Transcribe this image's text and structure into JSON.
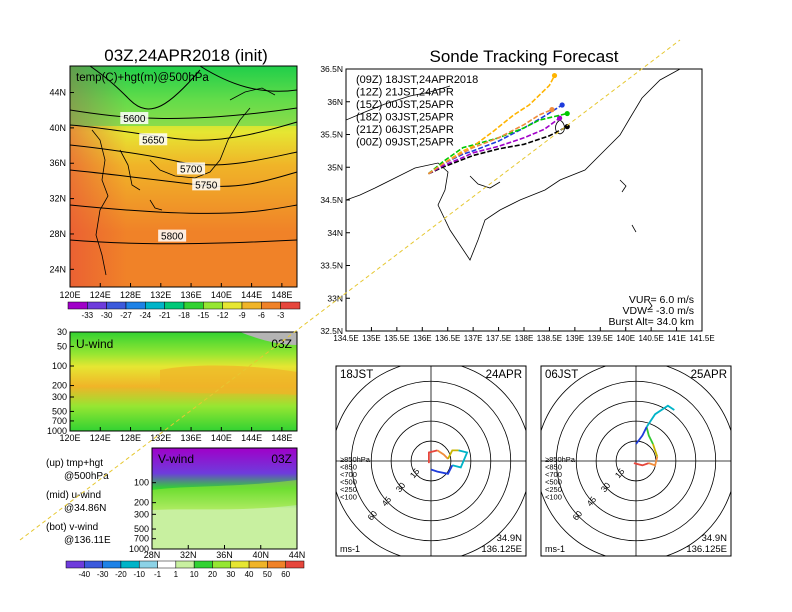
{
  "chart_data": [
    {
      "type": "heatmap",
      "panel": "upper-air-map",
      "title": "03Z,24APR2018 (init)",
      "subtitle": "temp(C)+hgt(m)@500hPa",
      "xticks": [
        "120E",
        "124E",
        "128E",
        "132E",
        "136E",
        "140E",
        "144E",
        "148E"
      ],
      "yticks": [
        "44N",
        "40N",
        "36N",
        "32N",
        "28N",
        "24N"
      ],
      "xlim": [
        120,
        150
      ],
      "ylim": [
        22,
        47
      ],
      "colorbar": {
        "ticks": [
          "-33",
          "-30",
          "-27",
          "-24",
          "-21",
          "-18",
          "-15",
          "-12",
          "-9",
          "-6",
          "-3"
        ],
        "colors": [
          "#a000c8",
          "#6e3cdc",
          "#3c5adc",
          "#1e82e6",
          "#00b4c8",
          "#00c878",
          "#32d232",
          "#96e632",
          "#e6e632",
          "#f0b428",
          "#f08228",
          "#e6463c"
        ]
      },
      "contour_labels": [
        {
          "text": "5600",
          "lon": 128.5,
          "lat": 41.0
        },
        {
          "text": "5650",
          "lon": 131.0,
          "lat": 38.6
        },
        {
          "text": "5700",
          "lon": 136.0,
          "lat": 35.3
        },
        {
          "text": "5750",
          "lon": 138.0,
          "lat": 33.5
        },
        {
          "text": "5800",
          "lon": 133.5,
          "lat": 27.7
        }
      ]
    },
    {
      "type": "heatmap",
      "panel": "u-wind",
      "title": "U-wind",
      "time": "03Z",
      "xticks": [
        "120E",
        "124E",
        "128E",
        "132E",
        "136E",
        "140E",
        "144E",
        "148E"
      ],
      "yticks": [
        "30",
        "50",
        "100",
        "200",
        "300",
        "500",
        "700",
        "1000"
      ],
      "xlim": [
        120,
        150
      ],
      "ylim": [
        1000,
        30
      ],
      "log_y": true
    },
    {
      "type": "heatmap",
      "panel": "v-wind",
      "title": "V-wind",
      "time": "03Z",
      "xticks": [
        "28N",
        "32N",
        "36N",
        "40N",
        "44N"
      ],
      "yticks": [
        "100",
        "200",
        "300",
        "500",
        "700",
        "1000"
      ],
      "xlim": [
        28,
        44
      ],
      "ylim": [
        1000,
        30
      ],
      "log_y": true,
      "colorbar": {
        "ticks": [
          "-40",
          "-30",
          "-20",
          "-10",
          "-1",
          "1",
          "10",
          "20",
          "30",
          "40",
          "50",
          "60"
        ],
        "colors": [
          "#6e3cdc",
          "#3c5adc",
          "#1e82e6",
          "#00b4c8",
          "#8cd2e6",
          "#ffffff",
          "#c8f0a0",
          "#32d232",
          "#96e632",
          "#e6e632",
          "#f0b428",
          "#f08228",
          "#e6463c"
        ]
      }
    },
    {
      "type": "line",
      "panel": "sonde-tracking",
      "title": "Sonde Tracking Forecast",
      "xticks": [
        "134.5E",
        "135E",
        "135.5E",
        "136E",
        "136.5E",
        "137E",
        "137.5E",
        "138E",
        "138.5E",
        "139E",
        "139.5E",
        "140E",
        "140.5E",
        "141E",
        "141.5E"
      ],
      "yticks": [
        "36.5N",
        "36N",
        "35.5N",
        "35N",
        "34.5N",
        "34N",
        "33.5N",
        "33N",
        "32.5N"
      ],
      "xlim": [
        134.5,
        141.5
      ],
      "ylim": [
        32.5,
        36.5
      ],
      "legend": "top-left",
      "series": [
        {
          "name": "(09Z) 18JST,24APR2018",
          "color": "#000000",
          "points": [
            [
              136.12,
              34.9
            ],
            [
              136.4,
              35.0
            ],
            [
              136.8,
              35.12
            ],
            [
              137.0,
              35.18
            ],
            [
              137.5,
              35.28
            ],
            [
              138.0,
              35.35
            ],
            [
              138.5,
              35.48
            ],
            [
              138.85,
              35.62
            ]
          ]
        },
        {
          "name": "(12Z) 21JST,24APR",
          "color": "#a000c8",
          "points": [
            [
              136.12,
              34.9
            ],
            [
              136.4,
              35.02
            ],
            [
              136.8,
              35.15
            ],
            [
              137.0,
              35.22
            ],
            [
              137.5,
              35.32
            ],
            [
              138.0,
              35.45
            ],
            [
              138.4,
              35.58
            ],
            [
              138.7,
              35.75
            ]
          ]
        },
        {
          "name": "(15Z) 00JST,25APR",
          "color": "#1e3cdc",
          "points": [
            [
              136.12,
              34.9
            ],
            [
              136.4,
              35.05
            ],
            [
              136.8,
              35.2
            ],
            [
              137.0,
              35.25
            ],
            [
              137.5,
              35.4
            ],
            [
              138.0,
              35.6
            ],
            [
              138.4,
              35.78
            ],
            [
              138.75,
              35.95
            ]
          ]
        },
        {
          "name": "(18Z) 03JST,25APR",
          "color": "#00c800",
          "points": [
            [
              136.12,
              34.9
            ],
            [
              136.4,
              35.08
            ],
            [
              136.8,
              35.3
            ],
            [
              137.0,
              35.34
            ],
            [
              137.5,
              35.45
            ],
            [
              138.0,
              35.6
            ],
            [
              138.3,
              35.72
            ],
            [
              138.85,
              35.82
            ]
          ]
        },
        {
          "name": "(21Z) 06JST,25APR",
          "color": "#ffb400",
          "points": [
            [
              136.12,
              34.9
            ],
            [
              136.4,
              35.05
            ],
            [
              136.8,
              35.25
            ],
            [
              137.0,
              35.32
            ],
            [
              137.4,
              35.55
            ],
            [
              137.8,
              35.8
            ],
            [
              138.1,
              35.95
            ],
            [
              138.3,
              36.1
            ],
            [
              138.5,
              36.25
            ],
            [
              138.6,
              36.4
            ]
          ]
        },
        {
          "name": "(00Z) 09JST,25APR",
          "color": "#f08c3c",
          "points": [
            [
              136.12,
              34.9
            ],
            [
              136.4,
              35.05
            ],
            [
              136.8,
              35.22
            ],
            [
              137.0,
              35.3
            ],
            [
              137.5,
              35.45
            ],
            [
              138.0,
              35.65
            ],
            [
              138.3,
              35.8
            ],
            [
              138.55,
              35.88
            ]
          ]
        }
      ],
      "annotations": [
        "VUP= 6.0 m/s",
        "VDW= -3.0 m/s",
        "Burst Alt= 34.0 km"
      ]
    },
    {
      "type": "line",
      "panel": "hodograph-18JST",
      "title_left": "18JST",
      "title_right": "24APR",
      "unit": "ms-1",
      "location": [
        "34.9N",
        "136.125E"
      ],
      "ring_labels": [
        "15",
        "30",
        "45",
        "60"
      ],
      "legend": [
        "≥850hPa",
        "<850",
        "<700",
        "<500",
        "<250",
        "<100"
      ],
      "legend_colors": [
        "#e6463c",
        "#f08c3c",
        "#c8b400",
        "#32c832",
        "#00b4c8",
        "#1e3cdc"
      ],
      "segments": [
        {
          "color": "#e6463c",
          "uv": [
            [
              -1,
              -1
            ],
            [
              -1,
              4
            ],
            [
              3,
              5
            ]
          ]
        },
        {
          "color": "#f08c3c",
          "uv": [
            [
              3,
              5
            ],
            [
              6,
              3
            ],
            [
              8,
              1
            ]
          ]
        },
        {
          "color": "#c8b400",
          "uv": [
            [
              8,
              1
            ],
            [
              10,
              5
            ],
            [
              13,
              5
            ]
          ]
        },
        {
          "color": "#00b4c8",
          "uv": [
            [
              13,
              5
            ],
            [
              17,
              4
            ],
            [
              14,
              -3
            ],
            [
              10,
              -2
            ]
          ]
        },
        {
          "color": "#1e3cdc",
          "uv": [
            [
              10,
              -2
            ],
            [
              8,
              -6
            ],
            [
              3,
              -5
            ],
            [
              0,
              -4
            ]
          ]
        }
      ]
    },
    {
      "type": "line",
      "panel": "hodograph-06JST",
      "title_left": "06JST",
      "title_right": "25APR",
      "unit": "ms-1",
      "location": [
        "34.9N",
        "136.125E"
      ],
      "ring_labels": [
        "15",
        "30",
        "45",
        "60"
      ],
      "legend": [
        "≥850hPa",
        "<850",
        "<700",
        "<500",
        "<250",
        "<100"
      ],
      "legend_colors": [
        "#e6463c",
        "#f08c3c",
        "#c8b400",
        "#32c832",
        "#00b4c8",
        "#1e3cdc"
      ],
      "segments": [
        {
          "color": "#e6463c",
          "uv": [
            [
              -1,
              -1
            ],
            [
              3,
              -2
            ],
            [
              6,
              -1
            ]
          ]
        },
        {
          "color": "#f08c3c",
          "uv": [
            [
              6,
              -1
            ],
            [
              9,
              -2
            ],
            [
              10,
              2
            ]
          ]
        },
        {
          "color": "#c8b400",
          "uv": [
            [
              10,
              2
            ],
            [
              9,
              5
            ],
            [
              8,
              8
            ]
          ]
        },
        {
          "color": "#32c832",
          "uv": [
            [
              8,
              8
            ],
            [
              6,
              12
            ],
            [
              5,
              16
            ]
          ]
        },
        {
          "color": "#00b4c8",
          "uv": [
            [
              5,
              16
            ],
            [
              9,
              22
            ],
            [
              15,
              26
            ],
            [
              18,
              24
            ]
          ]
        },
        {
          "color": "#1e3cdc",
          "uv": [
            [
              5,
              16
            ],
            [
              3,
              12
            ],
            [
              0,
              8
            ]
          ]
        }
      ]
    },
    {
      "type": "table",
      "panel": "left-legend",
      "rows": [
        [
          "(up) tmp+hgt",
          "@500hPa"
        ],
        [
          "(mid) u-wind",
          "@34.86N"
        ],
        [
          "(bot) v-wind",
          "@136.11E"
        ]
      ]
    }
  ]
}
